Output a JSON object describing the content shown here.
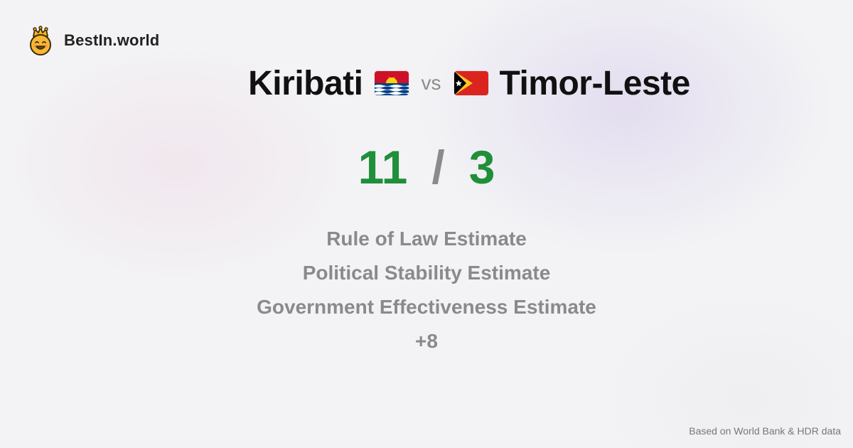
{
  "brand": {
    "name": "BestIn.world",
    "icon": "crowned-smiley-icon"
  },
  "comparison": {
    "left_country": "Kiribati",
    "left_flag": "kiribati-flag-icon",
    "vs_label": "vs",
    "right_country": "Timor-Leste",
    "right_flag": "timor-leste-flag-icon"
  },
  "score": {
    "left": "11",
    "separator": "/",
    "right": "3",
    "color": "#1f8f3a"
  },
  "metrics": [
    "Rule of Law Estimate",
    "Political Stability Estimate",
    "Government Effectiveness Estimate",
    "+8"
  ],
  "footer": {
    "source": "Based on World Bank & HDR data"
  }
}
